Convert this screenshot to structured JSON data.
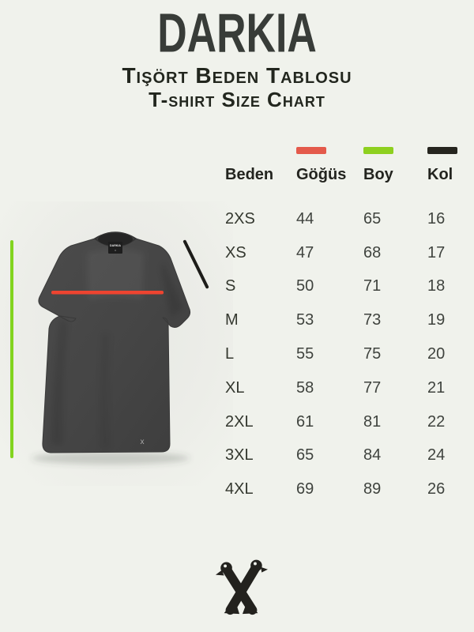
{
  "header": {
    "brand": "DARKIA",
    "subtitle_tr": "Tişört Beden Tablosu",
    "subtitle_en": "T-shirt Size Chart"
  },
  "colors": {
    "page_bg": "#f0f2ec",
    "chest_swatch": "#e45a4b",
    "length_swatch": "#8ed01f",
    "sleeve_swatch": "#26251f",
    "chest_line": "#ee4430",
    "length_line": "#82d41f",
    "sleeve_line": "#1d1c19",
    "shirt_fabric": "#454545",
    "logo_ink": "#23221e"
  },
  "table": {
    "columns": [
      {
        "key": "beden",
        "label": "Beden",
        "swatch": null
      },
      {
        "key": "gogus",
        "label": "Göğüs",
        "swatch": "#e45a4b"
      },
      {
        "key": "boy",
        "label": "Boy",
        "swatch": "#8ed01f"
      },
      {
        "key": "kol",
        "label": "Kol",
        "swatch": "#26251f"
      }
    ],
    "rows": [
      [
        "2XS",
        "44",
        "65",
        "16"
      ],
      [
        "XS",
        "47",
        "68",
        "17"
      ],
      [
        "S",
        "50",
        "71",
        "18"
      ],
      [
        "M",
        "53",
        "73",
        "19"
      ],
      [
        "L",
        "55",
        "75",
        "20"
      ],
      [
        "XL",
        "58",
        "77",
        "21"
      ],
      [
        "2XL",
        "61",
        "81",
        "22"
      ],
      [
        "3XL",
        "65",
        "84",
        "24"
      ],
      [
        "4XL",
        "69",
        "89",
        "26"
      ]
    ]
  },
  "tshirt": {
    "neck_label": "DARKIA",
    "hem_logo": "x"
  },
  "chart_data": {
    "type": "table",
    "title": "T-shirt Size Chart / Tişört Beden Tablosu",
    "columns": [
      "Beden",
      "Göğüs",
      "Boy",
      "Kol"
    ],
    "legend": [
      {
        "column": "Göğüs",
        "color": "#e45a4b",
        "maps_to": "chest line on shirt"
      },
      {
        "column": "Boy",
        "color": "#8ed01f",
        "maps_to": "vertical length line"
      },
      {
        "column": "Kol",
        "color": "#26251f",
        "maps_to": "sleeve diagonal line"
      }
    ],
    "rows": [
      [
        "2XS",
        44,
        65,
        16
      ],
      [
        "XS",
        47,
        68,
        17
      ],
      [
        "S",
        50,
        71,
        18
      ],
      [
        "M",
        53,
        73,
        19
      ],
      [
        "L",
        55,
        75,
        20
      ],
      [
        "XL",
        58,
        77,
        21
      ],
      [
        "2XL",
        61,
        81,
        22
      ],
      [
        "3XL",
        65,
        84,
        24
      ],
      [
        "4XL",
        69,
        89,
        26
      ]
    ]
  }
}
